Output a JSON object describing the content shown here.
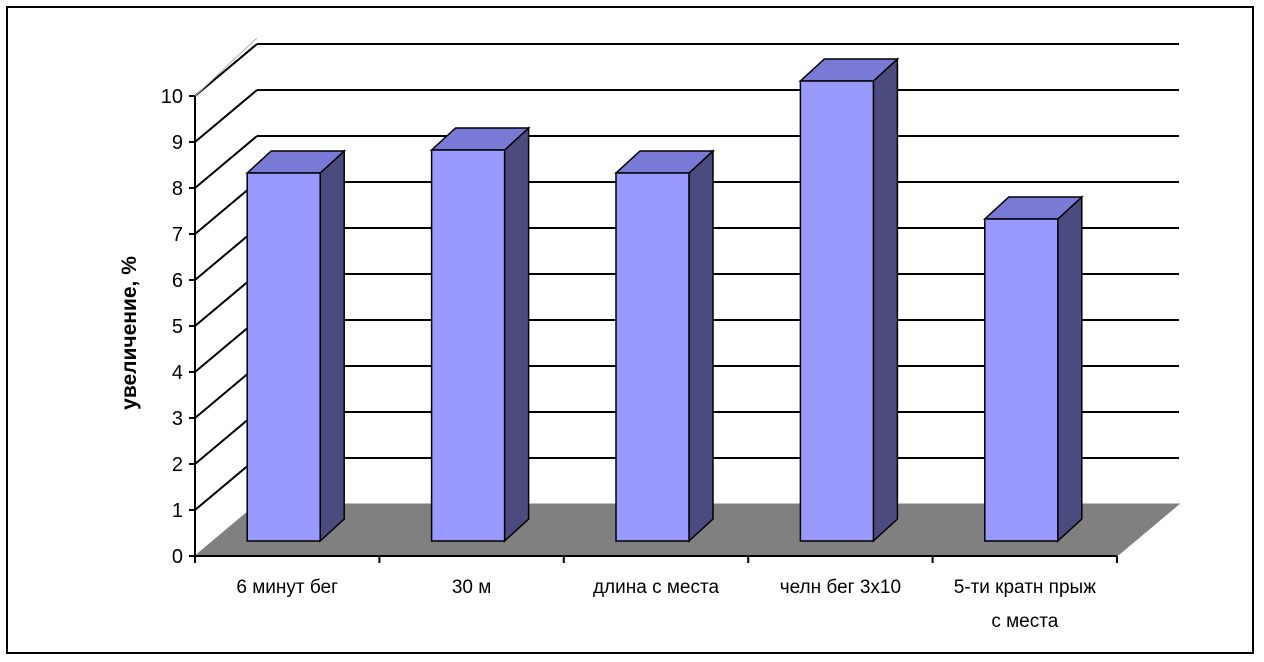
{
  "chart_data": {
    "type": "bar",
    "style": "3d-column",
    "categories": [
      "6 минут бег",
      "30 м",
      "длина с места",
      "челн бег 3х10",
      "5-ти кратн прыж с места"
    ],
    "category_label_lines": [
      [
        "6 минут бег"
      ],
      [
        "30 м"
      ],
      [
        "длина с места"
      ],
      [
        "челн бег 3х10"
      ],
      [
        "5-ти кратн прыж",
        "с места"
      ]
    ],
    "values": [
      8,
      8.5,
      8,
      10,
      7
    ],
    "title": "",
    "xlabel": "",
    "ylabel": "увеличение, %",
    "ylim": [
      0,
      10
    ],
    "yticks": [
      "0",
      "1",
      "2",
      "3",
      "4",
      "5",
      "6",
      "7",
      "8",
      "9",
      "10"
    ],
    "grid": true,
    "legend": "none",
    "colors": {
      "bar_front": "#9999ff",
      "bar_top": "#7a7ad6",
      "bar_side": "#4b4b80",
      "floor": "#808080",
      "gridline": "#000000"
    }
  }
}
